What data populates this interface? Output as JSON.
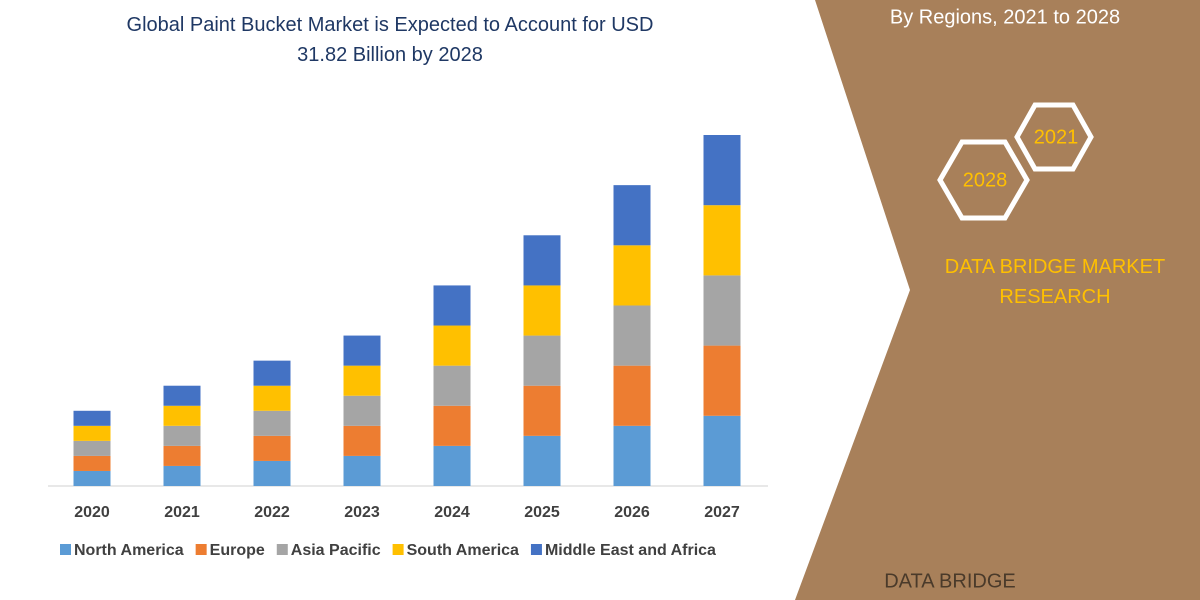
{
  "chart_data": {
    "type": "stacked_bar",
    "title": "Global Paint Bucket Market is Expected to Account for USD 31.82 Billion by 2028",
    "categories": [
      "2020",
      "2021",
      "2022",
      "2023",
      "2024",
      "2025",
      "2026",
      "2027"
    ],
    "series": [
      {
        "name": "North America",
        "color": "#5b9bd5",
        "values": [
          15,
          20,
          25,
          30,
          40,
          50,
          60,
          70
        ]
      },
      {
        "name": "Europe",
        "color": "#ed7d31",
        "values": [
          15,
          20,
          25,
          30,
          40,
          50,
          60,
          70
        ]
      },
      {
        "name": "Asia Pacific",
        "color": "#a5a5a5",
        "values": [
          15,
          20,
          25,
          30,
          40,
          50,
          60,
          70
        ]
      },
      {
        "name": "South America",
        "color": "#ffc000",
        "values": [
          15,
          20,
          25,
          30,
          40,
          50,
          60,
          70
        ]
      },
      {
        "name": "Middle East and Africa",
        "color": "#4472c4",
        "values": [
          15,
          20,
          25,
          30,
          40,
          50,
          60,
          70
        ]
      }
    ],
    "legend": "bottom"
  },
  "panel": {
    "heading": "By Regions, 2021 to 2028",
    "hex_left": "2028",
    "hex_right": "2021",
    "brand": "DATA BRIDGE MARKET RESEARCH",
    "logo": "DATA BRIDGE"
  }
}
